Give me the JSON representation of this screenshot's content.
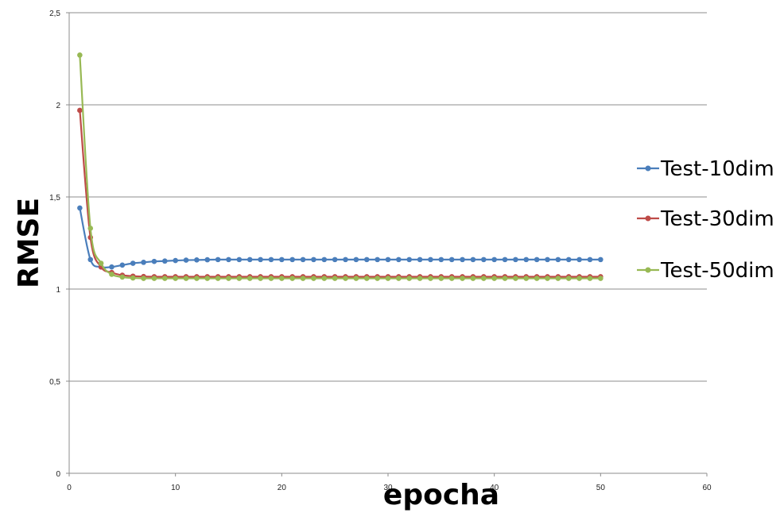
{
  "chart_data": {
    "type": "line",
    "title": "",
    "xlabel": "epocha",
    "ylabel": "RMSE",
    "xlim": [
      0,
      60
    ],
    "ylim": [
      0,
      2.5
    ],
    "x_ticks": [
      0,
      10,
      20,
      30,
      40,
      50,
      60
    ],
    "x_tick_labels": [
      "0",
      "10",
      "20",
      "30",
      "40",
      "50",
      "60"
    ],
    "y_ticks": [
      0,
      0.5,
      1,
      1.5,
      2,
      2.5
    ],
    "y_tick_labels": [
      "0",
      "0,5",
      "1",
      "1,5",
      "2",
      "2,5"
    ],
    "grid": "horizontal",
    "legend_position": "right",
    "x": [
      1,
      2,
      3,
      4,
      5,
      6,
      7,
      8,
      9,
      10,
      11,
      12,
      13,
      14,
      15,
      16,
      17,
      18,
      19,
      20,
      21,
      22,
      23,
      24,
      25,
      26,
      27,
      28,
      29,
      30,
      31,
      32,
      33,
      34,
      35,
      36,
      37,
      38,
      39,
      40,
      41,
      42,
      43,
      44,
      45,
      46,
      47,
      48,
      49,
      50
    ],
    "series": [
      {
        "name": "Test-10dim",
        "color": "#4a7ebb",
        "values": [
          1.44,
          1.16,
          1.12,
          1.12,
          1.13,
          1.14,
          1.145,
          1.15,
          1.152,
          1.155,
          1.157,
          1.158,
          1.159,
          1.16,
          1.16,
          1.16,
          1.16,
          1.16,
          1.16,
          1.16,
          1.16,
          1.16,
          1.16,
          1.16,
          1.16,
          1.16,
          1.16,
          1.16,
          1.16,
          1.16,
          1.16,
          1.16,
          1.16,
          1.16,
          1.16,
          1.16,
          1.16,
          1.16,
          1.16,
          1.16,
          1.16,
          1.16,
          1.16,
          1.16,
          1.16,
          1.16,
          1.16,
          1.16,
          1.16,
          1.16
        ]
      },
      {
        "name": "Test-30dim",
        "color": "#be4b48",
        "values": [
          1.97,
          1.28,
          1.12,
          1.09,
          1.075,
          1.07,
          1.068,
          1.067,
          1.067,
          1.067,
          1.067,
          1.067,
          1.067,
          1.067,
          1.067,
          1.067,
          1.067,
          1.067,
          1.067,
          1.067,
          1.067,
          1.067,
          1.067,
          1.067,
          1.067,
          1.067,
          1.067,
          1.067,
          1.067,
          1.067,
          1.067,
          1.067,
          1.067,
          1.067,
          1.067,
          1.067,
          1.067,
          1.067,
          1.067,
          1.067,
          1.067,
          1.067,
          1.067,
          1.067,
          1.067,
          1.067,
          1.067,
          1.067,
          1.067,
          1.067
        ]
      },
      {
        "name": "Test-50dim",
        "color": "#98b954",
        "values": [
          2.27,
          1.33,
          1.14,
          1.08,
          1.065,
          1.06,
          1.058,
          1.058,
          1.058,
          1.058,
          1.058,
          1.058,
          1.058,
          1.058,
          1.058,
          1.058,
          1.058,
          1.058,
          1.058,
          1.058,
          1.058,
          1.058,
          1.058,
          1.058,
          1.058,
          1.058,
          1.058,
          1.058,
          1.058,
          1.058,
          1.058,
          1.058,
          1.058,
          1.058,
          1.058,
          1.058,
          1.058,
          1.058,
          1.058,
          1.058,
          1.058,
          1.058,
          1.058,
          1.058,
          1.058,
          1.058,
          1.058,
          1.058,
          1.058,
          1.058
        ]
      }
    ]
  }
}
